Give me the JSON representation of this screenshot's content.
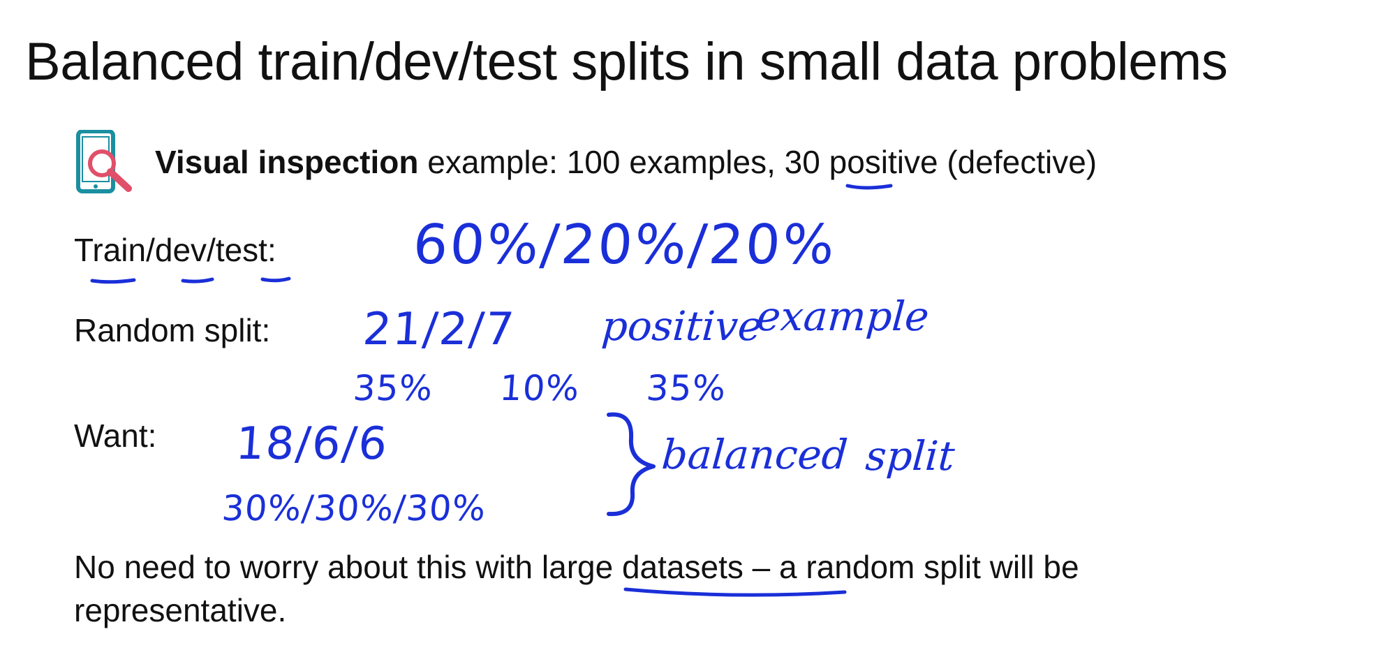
{
  "slide": {
    "title": "Balanced train/dev/test splits in small data problems",
    "example": {
      "icon": "phone-magnifier-icon",
      "bold_label": "Visual inspection",
      "text_before_count": " example:  100 examples, ",
      "positive_count": "30",
      "text_after_count": " positive (defective)"
    },
    "train_dev_test": {
      "label": "Train/dev/test:",
      "handwritten_split": "60%/20%/20%"
    },
    "random_split": {
      "label": "Random split:",
      "handwritten_counts": "21/2/7",
      "handwritten_note_1": "positive",
      "handwritten_note_2": "example",
      "handwritten_percent_1": "35%",
      "handwritten_percent_2": "10%",
      "handwritten_percent_3": "35%"
    },
    "want": {
      "label": "Want:",
      "handwritten_counts": "18/6/6",
      "handwritten_percents": "30%/30%/30%",
      "handwritten_note_1": "balanced",
      "handwritten_note_2": "split"
    },
    "footer": {
      "text_before": "No need to worry about this with ",
      "underlined": "large datasets",
      "text_after": " – a random split will be",
      "line_2": "representative."
    },
    "colors": {
      "ink": "#1a2fd8",
      "text": "#111111",
      "icon_teal": "#1a8fa0",
      "icon_red": "#e0506a"
    }
  }
}
